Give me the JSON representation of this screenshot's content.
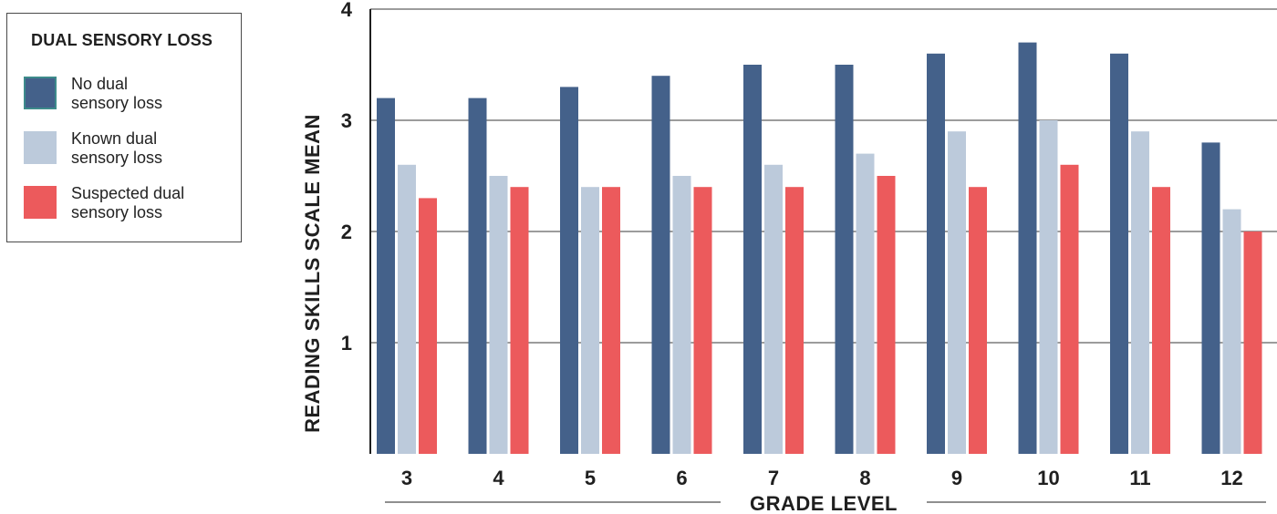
{
  "legend": {
    "title": "DUAL SENSORY LOSS",
    "items": [
      {
        "line1": "No dual",
        "line2": "sensory loss",
        "color": "#44618a",
        "border": "#3d8b8b"
      },
      {
        "line1": "Known dual",
        "line2": "sensory loss",
        "color": "#bccadb",
        "border": "#bccadb"
      },
      {
        "line1": "Suspected dual",
        "line2": "sensory loss",
        "color": "#ec5a5c",
        "border": "#ec5a5c"
      }
    ]
  },
  "chart_data": {
    "type": "bar",
    "xlabel": "GRADE LEVEL",
    "ylabel": "READING SKILLS SCALE MEAN",
    "ylim": [
      0,
      4
    ],
    "yticks": [
      "1",
      "2",
      "3",
      "4"
    ],
    "grid": true,
    "legend_position": "left",
    "categories": [
      "3",
      "4",
      "5",
      "6",
      "7",
      "8",
      "9",
      "10",
      "11",
      "12"
    ],
    "series": [
      {
        "name": "No dual sensory loss",
        "color": "#44618a",
        "values": [
          3.2,
          3.2,
          3.3,
          3.4,
          3.5,
          3.5,
          3.6,
          3.7,
          3.6,
          2.8
        ]
      },
      {
        "name": "Known dual sensory loss",
        "color": "#bccadb",
        "values": [
          2.6,
          2.5,
          2.4,
          2.5,
          2.6,
          2.7,
          2.9,
          3.0,
          2.9,
          2.2
        ]
      },
      {
        "name": "Suspected dual sensory loss",
        "color": "#ec5a5c",
        "values": [
          2.3,
          2.4,
          2.4,
          2.4,
          2.4,
          2.5,
          2.4,
          2.6,
          2.4,
          2.0
        ]
      }
    ]
  }
}
